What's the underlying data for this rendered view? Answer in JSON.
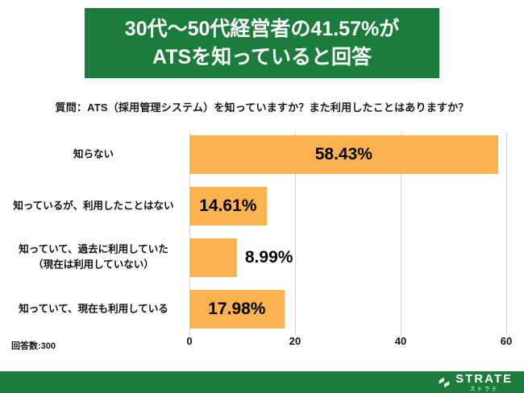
{
  "banner": {
    "line1": "30代～50代経営者の41.57%が",
    "line2": "ATSを知っていると回答"
  },
  "chart_data": {
    "type": "bar",
    "orientation": "horizontal",
    "title": "質問：ATS（採用管理システム）を知っていますか？また利用したことはありますか？",
    "xlim": [
      0,
      60
    ],
    "xticks": [
      0,
      20,
      40,
      60
    ],
    "grid": true,
    "bar_color": "#FAB24E",
    "rows": [
      {
        "label": "知らない",
        "label2": "",
        "value": 58.43,
        "display": "58.43%"
      },
      {
        "label": "知っているが、利用したことはない",
        "label2": "",
        "value": 14.61,
        "display": "14.61%"
      },
      {
        "label": "知っていて、過去に利用していた",
        "label2": "（現在は利用していない）",
        "value": 8.99,
        "display": "8.99%"
      },
      {
        "label": "知っていて、現在も利用している",
        "label2": "",
        "value": 17.98,
        "display": "17.98%"
      }
    ]
  },
  "footnote": "回答数:300",
  "footer": {
    "brand": "STRATE",
    "brand_sub": "ストラテ"
  },
  "colors": {
    "green": "#1B7C3B",
    "bar": "#FAB24E"
  }
}
